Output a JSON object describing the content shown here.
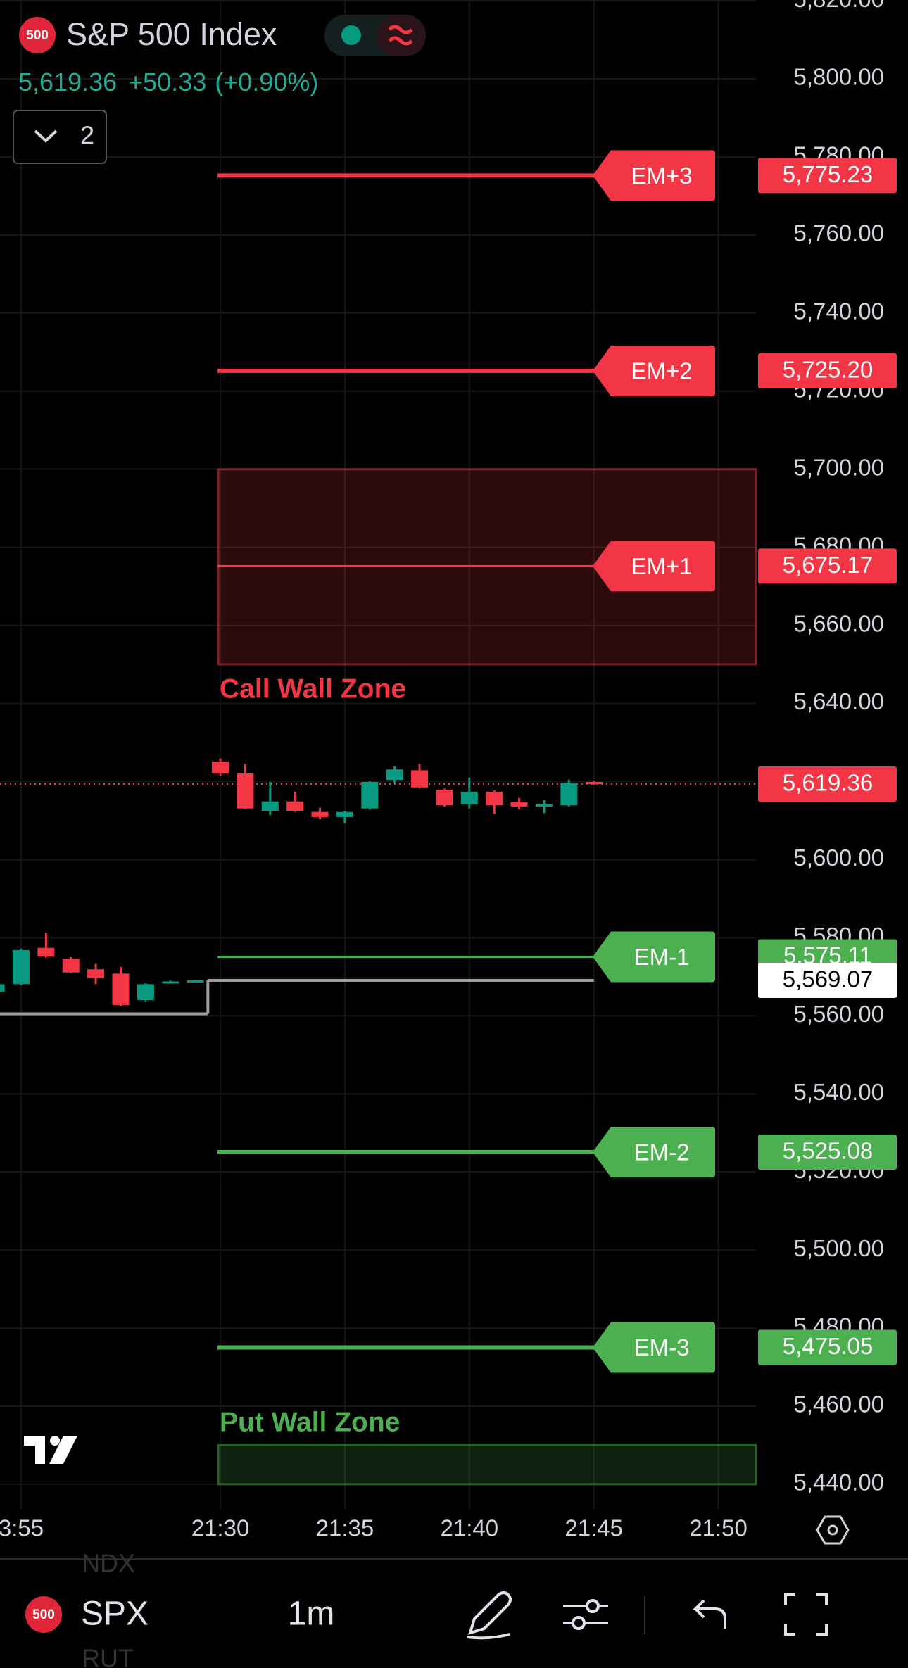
{
  "header": {
    "badge": "500",
    "title": "S&P 500 Index",
    "price": "5,619.36",
    "change": "+50.33",
    "change_pct": "(+0.90%)",
    "indicator_count": "2"
  },
  "chart_data": {
    "type": "candlestick",
    "categories": [
      null,
      "3:55",
      null,
      null,
      null,
      null,
      null,
      null,
      null,
      "21:30",
      null,
      null,
      null,
      null,
      "21:35",
      null,
      null,
      null,
      null,
      "21:40",
      null,
      null,
      null,
      null,
      "21:45",
      null,
      null,
      null,
      null,
      "21:50"
    ],
    "open": [
      5566.2,
      5568.1,
      5577.4,
      5574.6,
      5571.9,
      5570.8,
      5564.0,
      5568.4,
      5568.8,
      5625.1,
      5622.1,
      5612.5,
      5614.9,
      5612.2,
      5610.9,
      5613.1,
      5620.4,
      5622.9,
      5617.9,
      5614.2,
      5617.4,
      5614.7,
      5613.6,
      5613.9,
      5619.9,
      null,
      null,
      null,
      null,
      null
    ],
    "high": [
      5568.5,
      5577.2,
      5581.2,
      5575.0,
      5573.3,
      5572.5,
      5568.4,
      5569.0,
      5569.2,
      5625.9,
      5624.5,
      5619.9,
      5617.4,
      5613.3,
      5612.5,
      5620.2,
      5624.0,
      5624.5,
      5618.2,
      5621.0,
      5617.7,
      5615.8,
      5615.2,
      5620.5,
      5620.2,
      null,
      null,
      null,
      null,
      null
    ],
    "low": [
      5565.8,
      5567.8,
      5574.9,
      5570.9,
      5568.1,
      5562.5,
      5563.7,
      5568.3,
      5568.7,
      5621.5,
      5613.0,
      5611.4,
      5612.2,
      5610.3,
      5609.3,
      5612.8,
      5619.6,
      5618.2,
      5613.6,
      5613.1,
      5611.7,
      5612.8,
      5611.9,
      5613.6,
      5619.2,
      null,
      null,
      null,
      null,
      null
    ],
    "close": [
      5568.1,
      5576.8,
      5575.2,
      5571.1,
      5569.7,
      5562.7,
      5568.1,
      5568.8,
      5569.07,
      5622.1,
      5613.1,
      5614.9,
      5612.5,
      5610.9,
      5612.2,
      5619.9,
      5623.1,
      5618.5,
      5613.9,
      5617.4,
      5613.9,
      5613.6,
      5614.2,
      5619.6,
      5619.36,
      null,
      null,
      null,
      null,
      null
    ],
    "up_color": "#089981",
    "down_color": "#f23645",
    "ylim": [
      5433.67,
      5820.19
    ],
    "yticks": [
      {
        "value": 5820,
        "label": "5,820.00"
      },
      {
        "value": 5800,
        "label": "5,800.00"
      },
      {
        "value": 5780,
        "label": "5,780.00"
      },
      {
        "value": 5760,
        "label": "5,760.00"
      },
      {
        "value": 5740,
        "label": "5,740.00"
      },
      {
        "value": 5720,
        "label": "5,720.00"
      },
      {
        "value": 5700,
        "label": "5,700.00"
      },
      {
        "value": 5680,
        "label": "5,680.00"
      },
      {
        "value": 5660,
        "label": "5,660.00"
      },
      {
        "value": 5640,
        "label": "5,640.00"
      },
      {
        "value": 5620,
        "label": "5,620.00"
      },
      {
        "value": 5600,
        "label": "5,600.00"
      },
      {
        "value": 5580,
        "label": "5,580.00"
      },
      {
        "value": 5560,
        "label": "5,560.00"
      },
      {
        "value": 5540,
        "label": "5,540.00"
      },
      {
        "value": 5520,
        "label": "5,520.00"
      },
      {
        "value": 5500,
        "label": "5,500.00"
      },
      {
        "value": 5480,
        "label": "5,480.00"
      },
      {
        "value": 5460,
        "label": "5,460.00"
      },
      {
        "value": 5440,
        "label": "5,440.00"
      }
    ],
    "grid": true,
    "zones": [
      {
        "name": "Call Wall Zone",
        "from": 5650,
        "to": 5700,
        "color": "#f23645"
      },
      {
        "name": "Put Wall Zone",
        "from": 5440,
        "to": 5450,
        "color": "#4caf50"
      }
    ],
    "levels": [
      {
        "name": "EM+3",
        "value": 5775.23,
        "label": "5,775.23",
        "color": "#f23645"
      },
      {
        "name": "EM+2",
        "value": 5725.2,
        "label": "5,725.20",
        "color": "#f23645"
      },
      {
        "name": "EM+1",
        "value": 5675.17,
        "label": "5,675.17",
        "color": "#f23645"
      },
      {
        "name": "EM-1",
        "value": 5575.11,
        "label": "5,575.11",
        "color": "#4caf50"
      },
      {
        "name": "EM-2",
        "value": 5525.08,
        "label": "5,525.08",
        "color": "#4caf50"
      },
      {
        "name": "EM-3",
        "value": 5475.05,
        "label": "5,475.05",
        "color": "#4caf50"
      }
    ],
    "close_line": {
      "values": [
        5560.5,
        5569.07
      ],
      "label": "5,569.07",
      "color": "#9e9e9e"
    },
    "last_price": {
      "value": 5619.36,
      "label": "5,619.36",
      "color": "#f23645"
    }
  },
  "toolbar": {
    "badge": "500",
    "symbol": "SPX",
    "interval": "1m",
    "behind": [
      "NDX",
      "RUT"
    ]
  }
}
